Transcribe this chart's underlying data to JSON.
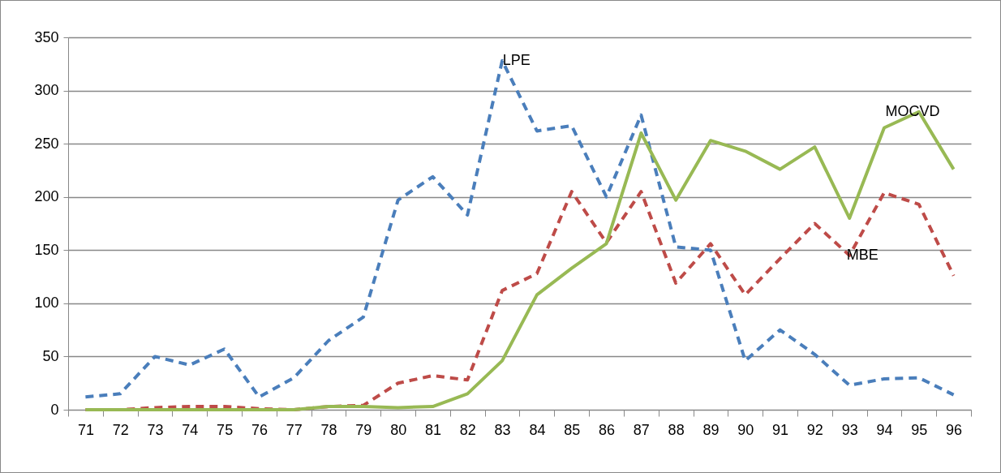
{
  "chart_data": {
    "type": "line",
    "categories": [
      "71",
      "72",
      "73",
      "74",
      "75",
      "76",
      "77",
      "78",
      "79",
      "80",
      "81",
      "82",
      "83",
      "84",
      "85",
      "86",
      "87",
      "88",
      "89",
      "90",
      "91",
      "92",
      "93",
      "94",
      "95",
      "96"
    ],
    "ylim": [
      0,
      350
    ],
    "yticks": [
      0,
      50,
      100,
      150,
      200,
      250,
      300,
      350
    ],
    "grid": "y",
    "marker": "none",
    "series": [
      {
        "name": "LPE",
        "color": "#4a7ebb",
        "line_style": "dashed",
        "values": [
          12,
          15,
          50,
          42,
          57,
          12,
          30,
          65,
          87,
          197,
          219,
          183,
          328,
          262,
          267,
          200,
          277,
          153,
          150,
          46,
          75,
          52,
          23,
          29,
          30,
          14
        ]
      },
      {
        "name": "MBE",
        "color": "#be4b48",
        "line_style": "dashed",
        "values": [
          0,
          0,
          2,
          3,
          3,
          1,
          0,
          3,
          4,
          25,
          32,
          28,
          112,
          128,
          205,
          157,
          205,
          119,
          156,
          108,
          142,
          175,
          145,
          204,
          193,
          126
        ]
      },
      {
        "name": "MOCVD",
        "color": "#98b954",
        "line_style": "solid",
        "values": [
          0,
          0,
          0,
          0,
          0,
          0,
          0,
          3,
          3,
          2,
          3,
          15,
          46,
          108,
          133,
          156,
          260,
          197,
          253,
          243,
          226,
          247,
          180,
          265,
          280,
          226
        ]
      }
    ]
  }
}
